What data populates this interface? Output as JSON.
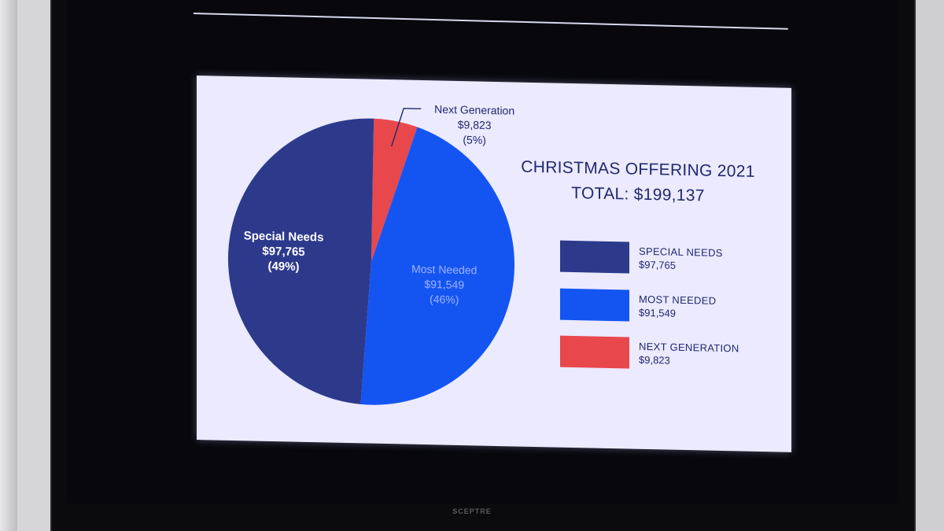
{
  "chart_data": {
    "type": "pie",
    "title": "CHRISTMAS OFFERING 2021",
    "subtitle": "TOTAL: $199,137",
    "slices": [
      {
        "name": "Special Needs",
        "value": 97765,
        "value_label": "$97,765",
        "percent_label": "(49%)",
        "legend_label": "SPECIAL NEEDS",
        "color": "#2d3a8c",
        "label_color": "#ffffff"
      },
      {
        "name": "Most Needed",
        "value": 91549,
        "value_label": "$91,549",
        "percent_label": "(46%)",
        "legend_label": "MOST NEEDED",
        "color": "#1455f2",
        "label_color": "#9fb3ff"
      },
      {
        "name": "Next Generation",
        "value": 9823,
        "value_label": "$9,823",
        "percent_label": "(5%)",
        "legend_label": "NEXT GENERATION",
        "color": "#e8484c",
        "label_color": "#20296e"
      }
    ],
    "legend_position": "right"
  },
  "colors": {
    "slide_background": "#ebeaff",
    "title_text": "#20296e"
  }
}
